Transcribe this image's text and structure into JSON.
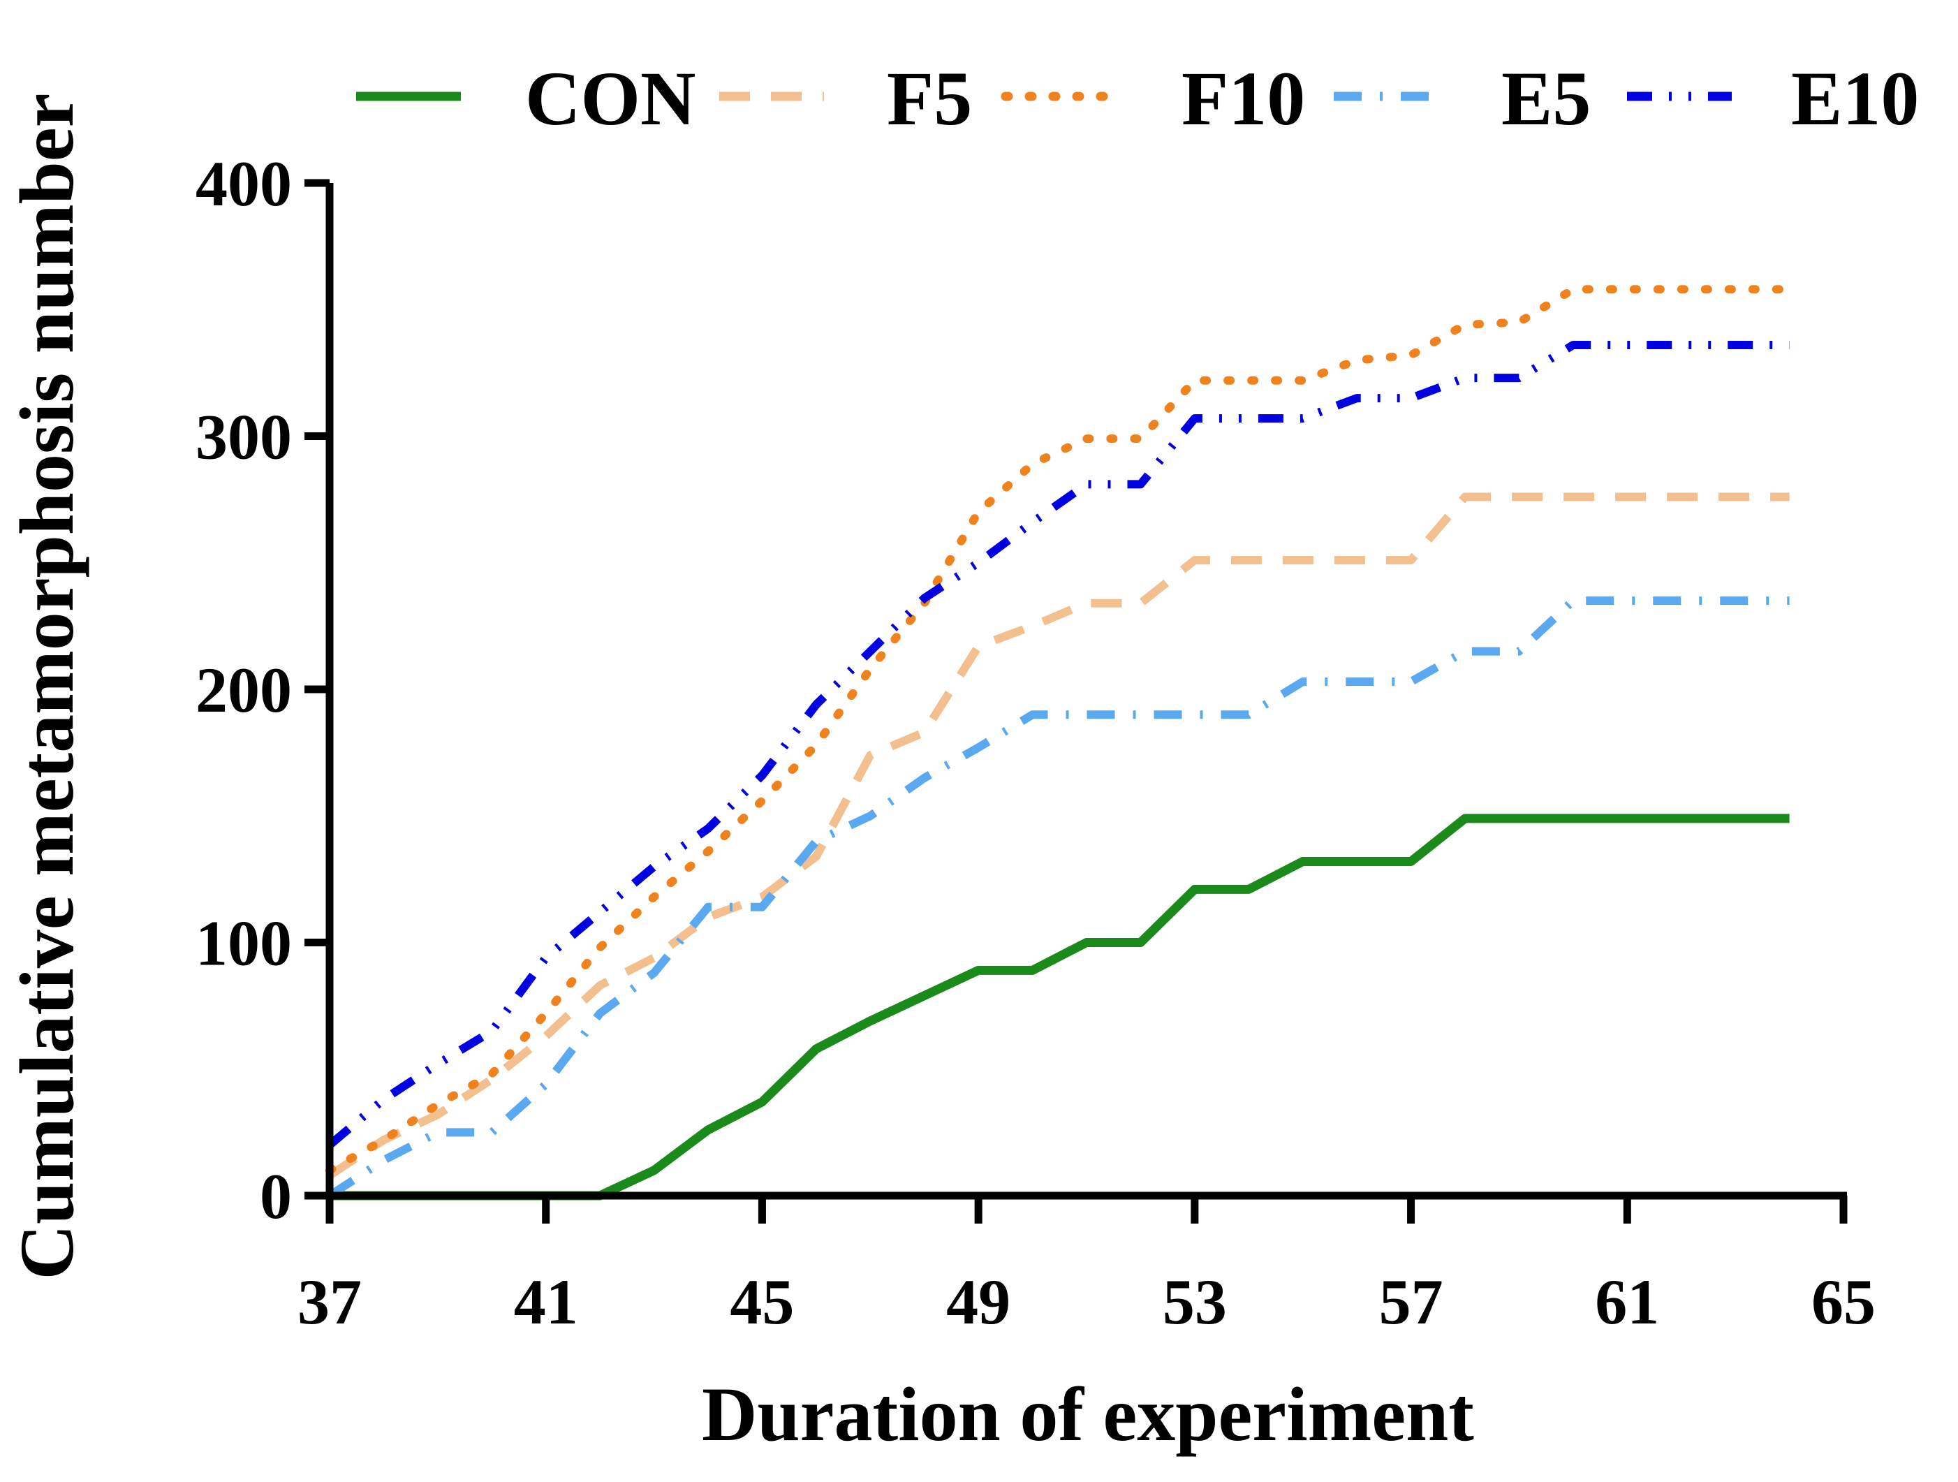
{
  "chart_data": {
    "type": "line",
    "title": "",
    "xlabel": "Duration of experiment",
    "ylabel": "Cumulative metamorphosis number",
    "xlim": [
      37,
      65
    ],
    "ylim": [
      0,
      400
    ],
    "x_ticks": [
      "37",
      "41",
      "45",
      "49",
      "53",
      "57",
      "61",
      "65"
    ],
    "y_ticks": [
      "0",
      "100",
      "200",
      "300",
      "400"
    ],
    "legend_position": "top",
    "x": [
      37,
      38,
      39,
      40,
      41,
      42,
      43,
      44,
      45,
      46,
      47,
      48,
      49,
      50,
      51,
      52,
      53,
      54,
      55,
      56,
      57,
      58,
      59,
      60,
      61,
      62,
      63,
      64
    ],
    "series": [
      {
        "name": "CON",
        "color": "#1a8a1a",
        "dash": "solid",
        "values": [
          0,
          0,
          0,
          0,
          0,
          0,
          10,
          26,
          37,
          58,
          69,
          79,
          89,
          89,
          100,
          100,
          121,
          121,
          132,
          132,
          132,
          149,
          149,
          149,
          149,
          149,
          149,
          149
        ]
      },
      {
        "name": "F5",
        "color": "#f4bf8f",
        "dash": "long-dash",
        "values": [
          8,
          22,
          32,
          46,
          63,
          83,
          94,
          110,
          118,
          134,
          174,
          183,
          217,
          225,
          234,
          234,
          251,
          251,
          251,
          251,
          251,
          276,
          276,
          276,
          276,
          276,
          276,
          276
        ]
      },
      {
        "name": "F10",
        "color": "#f0821e",
        "dash": "dot",
        "values": [
          10,
          22,
          36,
          48,
          72,
          98,
          118,
          136,
          156,
          178,
          208,
          234,
          270,
          289,
          299,
          299,
          322,
          322,
          322,
          330,
          332,
          344,
          345,
          358,
          358,
          358,
          358,
          358
        ]
      },
      {
        "name": "E5",
        "color": "#5aa8f0",
        "dash": "dash-dot",
        "values": [
          0,
          14,
          25,
          25,
          44,
          72,
          88,
          114,
          114,
          140,
          150,
          165,
          177,
          190,
          190,
          190,
          190,
          190,
          203,
          203,
          203,
          215,
          215,
          235,
          235,
          235,
          235,
          235
        ]
      },
      {
        "name": "E10",
        "color": "#0000e0",
        "dash": "dash-dot-dot",
        "values": [
          20,
          38,
          52,
          65,
          94,
          112,
          130,
          145,
          166,
          194,
          215,
          236,
          250,
          266,
          281,
          281,
          307,
          307,
          307,
          315,
          315,
          323,
          323,
          336,
          336,
          336,
          336,
          336
        ]
      }
    ]
  }
}
